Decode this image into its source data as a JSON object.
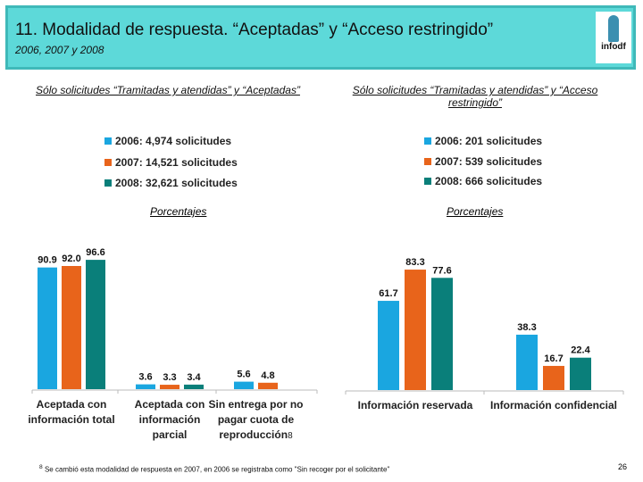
{
  "header": {
    "title": "11. Modalidad de respuesta. “Aceptadas” y “Acceso restringido”",
    "subtitle": "2006, 2007 y 2008",
    "logo_text": "infodf"
  },
  "colors": {
    "2006": "#1aa6e0",
    "2007": "#e8641b",
    "2008": "#0a7f7a"
  },
  "chart_data": [
    {
      "type": "bar",
      "title": "Sólo solicitudes “Tramitadas y atendidas” y “Aceptadas”",
      "ylabel": "Porcentajes",
      "legend": [
        "2006: 4,974 solicitudes",
        "2007: 14,521 solicitudes",
        "2008: 32,621 solicitudes"
      ],
      "categories": [
        "Aceptada con información total",
        "Aceptada con información parcial",
        "Sin entrega por no pagar cuota de reproducción"
      ],
      "category_lines": [
        [
          "Aceptada con",
          "información total"
        ],
        [
          "Aceptada con",
          "información",
          "parcial"
        ],
        [
          "Sin entrega por no",
          "pagar cuota de",
          "reproducción"
        ]
      ],
      "category_note": [
        "",
        "",
        "8"
      ],
      "series": [
        {
          "name": "2006",
          "values": [
            90.9,
            3.6,
            5.6
          ]
        },
        {
          "name": "2007",
          "values": [
            92.0,
            3.3,
            4.8
          ]
        },
        {
          "name": "2008",
          "values": [
            96.6,
            3.4,
            null
          ]
        }
      ]
    },
    {
      "type": "bar",
      "title": "Sólo solicitudes “Tramitadas y atendidas” y “Acceso restringido”",
      "ylabel": "Porcentajes",
      "legend": [
        "2006: 201 solicitudes",
        "2007: 539 solicitudes",
        "2008: 666 solicitudes"
      ],
      "categories": [
        "Información reservada",
        "Información confidencial"
      ],
      "category_lines": [
        [
          "Información reservada"
        ],
        [
          "Información confidencial"
        ]
      ],
      "category_note": [
        "",
        ""
      ],
      "series": [
        {
          "name": "2006",
          "values": [
            61.7,
            38.3
          ]
        },
        {
          "name": "2007",
          "values": [
            83.3,
            16.7
          ]
        },
        {
          "name": "2008",
          "values": [
            77.6,
            22.4
          ]
        }
      ]
    }
  ],
  "footnote": {
    "mark": "8",
    "text": "Se cambió esta modalidad de respuesta en 2007, en 2006 se registraba como \"Sin recoger por el solicitante\""
  },
  "page_number": "26"
}
